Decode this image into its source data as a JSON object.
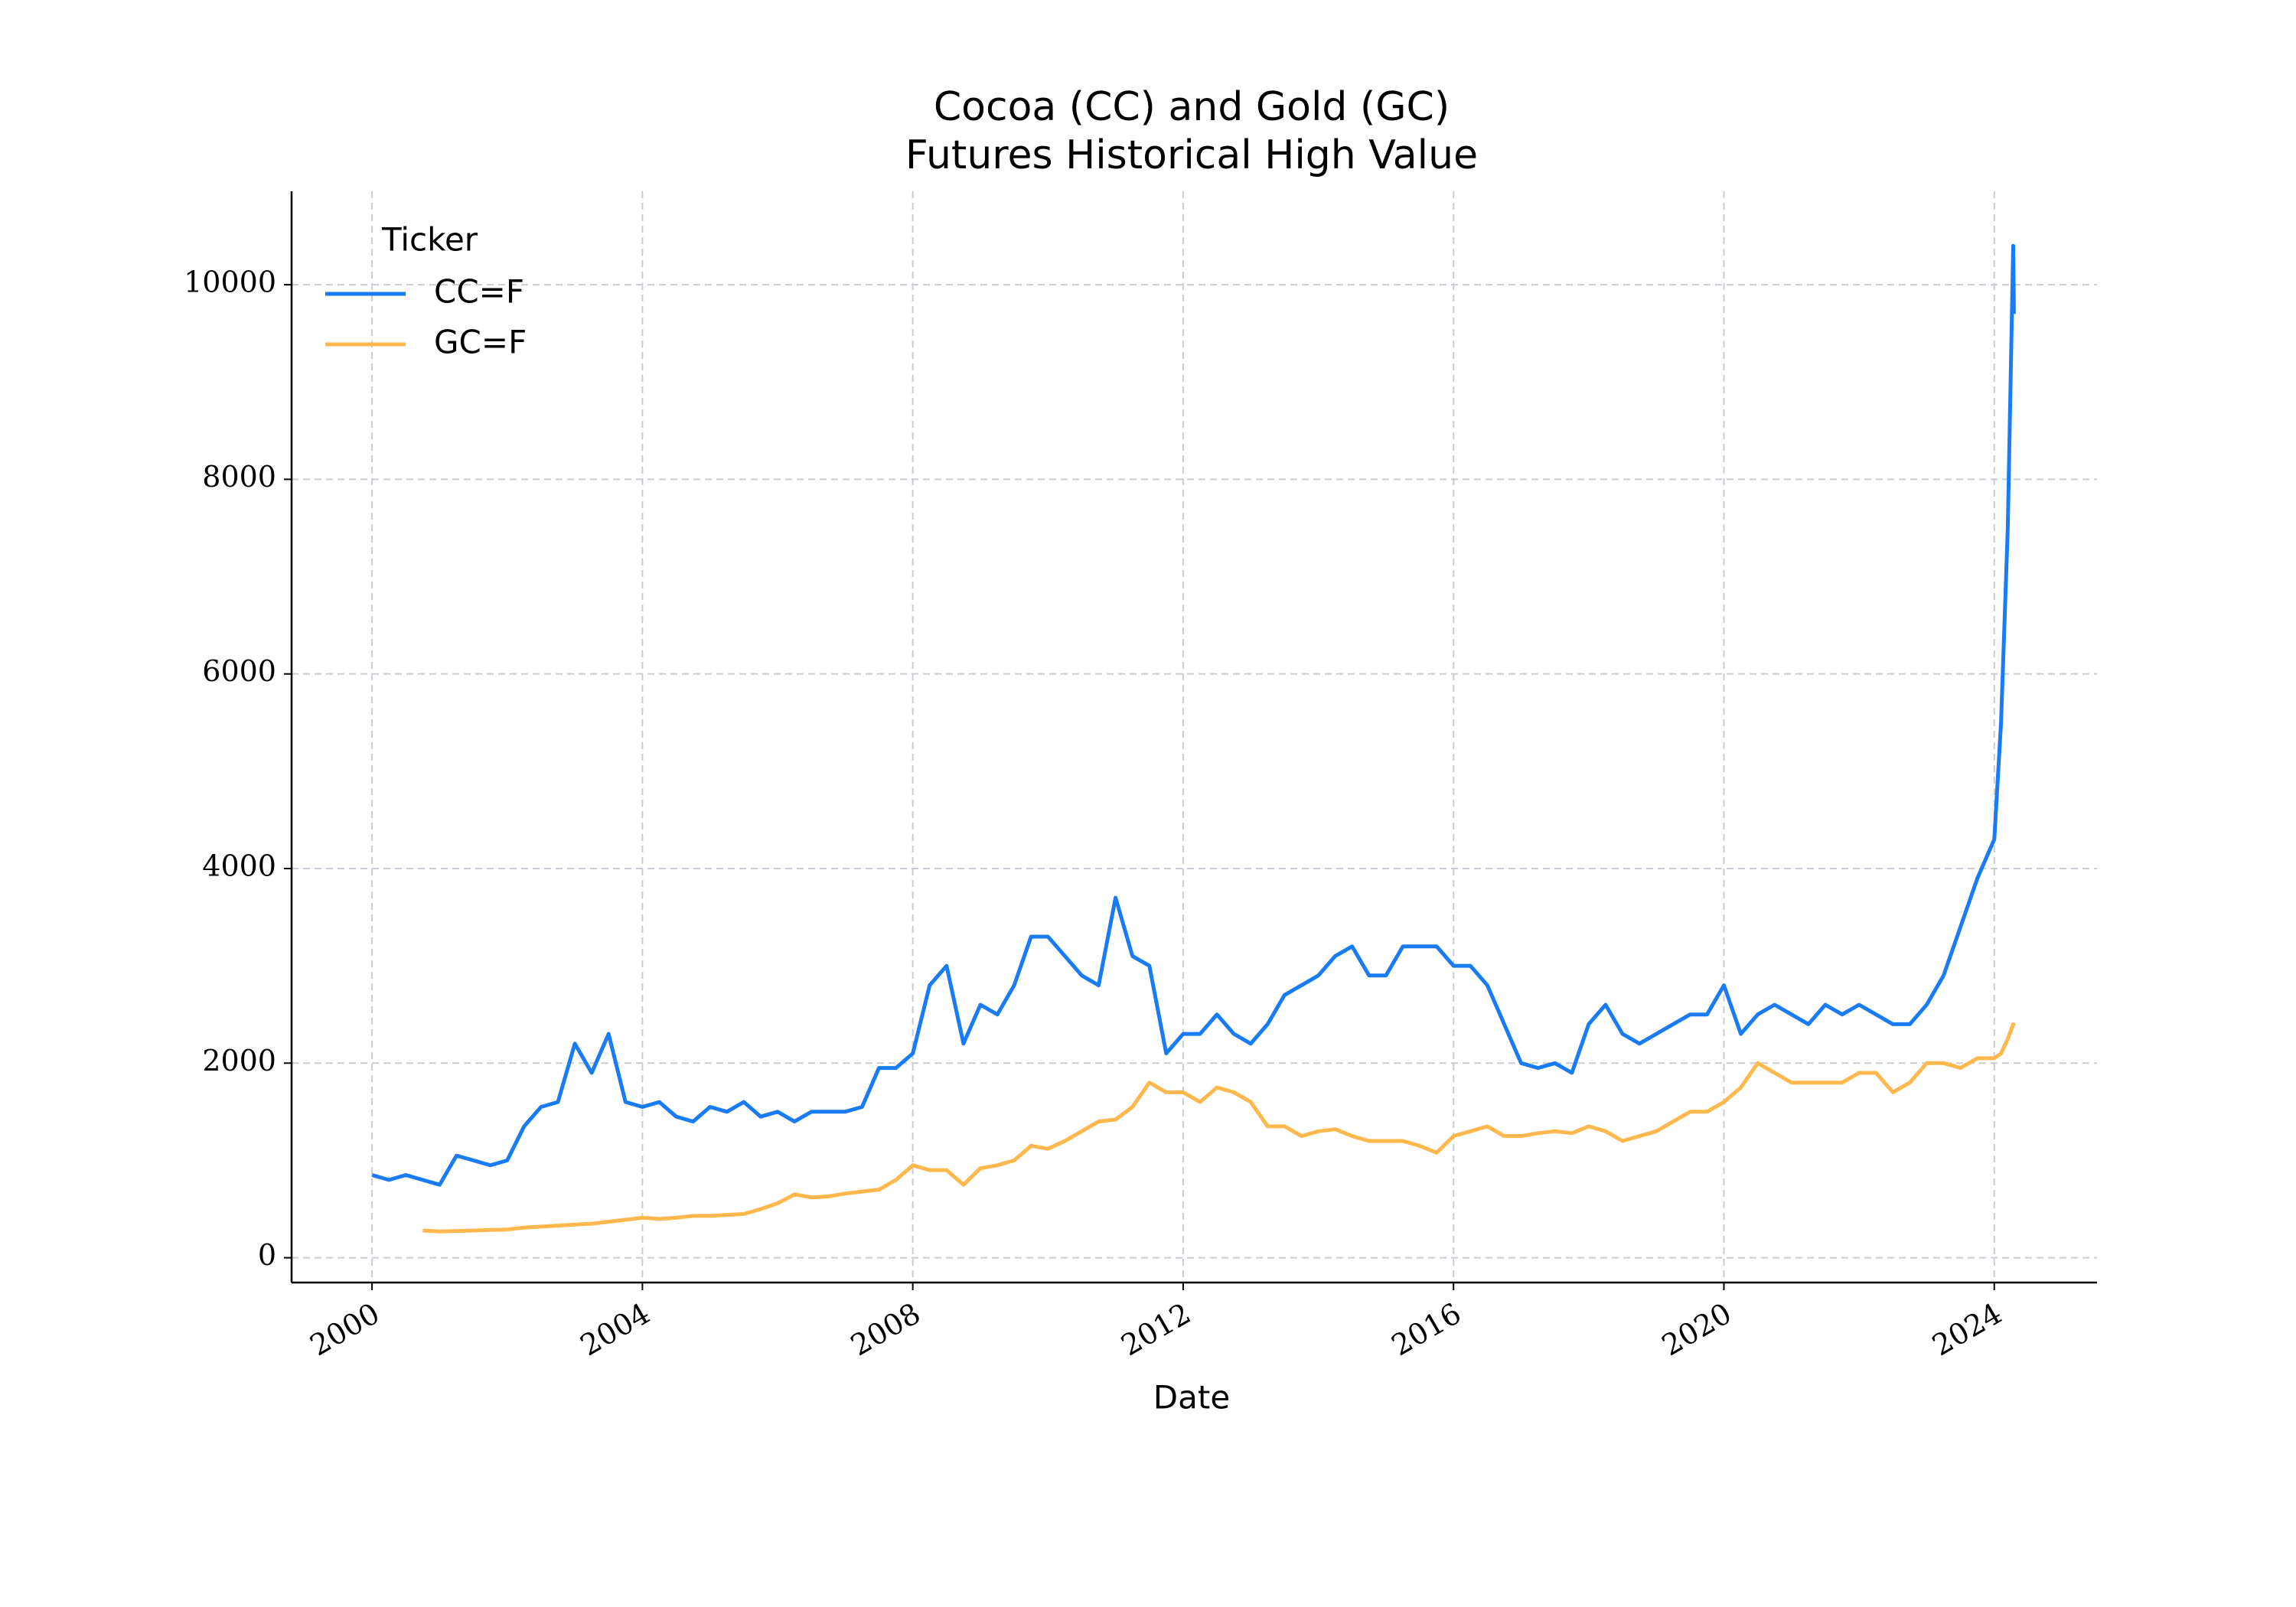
{
  "chart_data": {
    "type": "line",
    "title": "Cocoa (CC) and Gold (GC)",
    "subtitle": "Futures Historical High Value",
    "x_label": "Date",
    "legend_title": "Ticker",
    "legend": "upper left",
    "grid": true,
    "x": [
      2000,
      2000.25,
      2000.5,
      2000.75,
      2001,
      2001.25,
      2001.5,
      2001.75,
      2002,
      2002.25,
      2002.5,
      2002.75,
      2003,
      2003.25,
      2003.5,
      2003.75,
      2004,
      2004.25,
      2004.5,
      2004.75,
      2005,
      2005.25,
      2005.5,
      2005.75,
      2006,
      2006.25,
      2006.5,
      2006.75,
      2007,
      2007.25,
      2007.5,
      2007.75,
      2008,
      2008.25,
      2008.5,
      2008.75,
      2009,
      2009.25,
      2009.5,
      2009.75,
      2010,
      2010.25,
      2010.5,
      2010.75,
      2011,
      2011.25,
      2011.5,
      2011.75,
      2012,
      2012.25,
      2012.5,
      2012.75,
      2013,
      2013.25,
      2013.5,
      2013.75,
      2014,
      2014.25,
      2014.5,
      2014.75,
      2015,
      2015.25,
      2015.5,
      2015.75,
      2016,
      2016.25,
      2016.5,
      2016.75,
      2017,
      2017.25,
      2017.5,
      2017.75,
      2018,
      2018.25,
      2018.5,
      2018.75,
      2019,
      2019.25,
      2019.5,
      2019.75,
      2020,
      2020.25,
      2020.5,
      2020.75,
      2021,
      2021.25,
      2021.5,
      2021.75,
      2022,
      2022.25,
      2022.5,
      2022.75,
      2023,
      2023.25,
      2023.5,
      2023.75,
      2024,
      2024.1,
      2024.2,
      2024.28,
      2024.29
    ],
    "series": [
      {
        "name": "CC=F",
        "color": "#1a7cf5",
        "values": [
          850,
          800,
          850,
          800,
          750,
          1050,
          1000,
          950,
          1000,
          1350,
          1550,
          1600,
          2200,
          1900,
          2300,
          1600,
          1550,
          1600,
          1450,
          1400,
          1550,
          1500,
          1600,
          1450,
          1500,
          1400,
          1500,
          1500,
          1500,
          1550,
          1950,
          1950,
          2100,
          2800,
          3000,
          2200,
          2600,
          2500,
          2800,
          3300,
          3300,
          3100,
          2900,
          2800,
          3700,
          3100,
          3000,
          2100,
          2300,
          2300,
          2500,
          2300,
          2200,
          2400,
          2700,
          2800,
          2900,
          3100,
          3200,
          2900,
          2900,
          3200,
          3200,
          3200,
          3000,
          3000,
          2800,
          2400,
          2000,
          1950,
          2000,
          1900,
          2400,
          2600,
          2300,
          2200,
          2300,
          2400,
          2500,
          2500,
          2800,
          2300,
          2500,
          2600,
          2500,
          2400,
          2600,
          2500,
          2600,
          2500,
          2400,
          2400,
          2600,
          2900,
          3400,
          3900,
          4300,
          5500,
          7500,
          10400,
          9700
        ]
      },
      {
        "name": "GC=F",
        "color": "#ffb84d",
        "values": [
          null,
          null,
          null,
          280,
          270,
          275,
          280,
          285,
          290,
          310,
          320,
          330,
          340,
          350,
          370,
          390,
          410,
          400,
          410,
          430,
          430,
          440,
          450,
          500,
          560,
          650,
          620,
          630,
          660,
          680,
          700,
          800,
          950,
          900,
          900,
          750,
          920,
          950,
          1000,
          1150,
          1120,
          1200,
          1300,
          1400,
          1420,
          1550,
          1800,
          1700,
          1700,
          1600,
          1750,
          1700,
          1600,
          1350,
          1350,
          1250,
          1300,
          1320,
          1250,
          1200,
          1200,
          1200,
          1150,
          1080,
          1250,
          1300,
          1350,
          1250,
          1250,
          1280,
          1300,
          1280,
          1350,
          1300,
          1200,
          1250,
          1300,
          1400,
          1500,
          1500,
          1600,
          1750,
          2000,
          1900,
          1800,
          1800,
          1800,
          1800,
          1900,
          1900,
          1700,
          1800,
          2000,
          2000,
          1950,
          2050,
          2050,
          2100,
          2250,
          2400,
          2380
        ]
      }
    ],
    "xlim": [
      1998.81,
      2025.52
    ],
    "xticks": [
      2000,
      2004,
      2008,
      2012,
      2016,
      2020,
      2024
    ],
    "ylim": [
      -255,
      10960
    ],
    "yticks": [
      0,
      2000,
      4000,
      6000,
      8000,
      10000
    ]
  }
}
